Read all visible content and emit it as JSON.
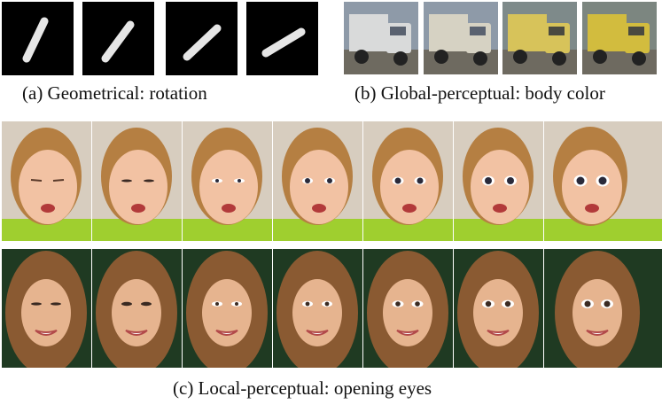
{
  "captions": {
    "a": "(a) Geometrical: rotation",
    "b": "(b) Global-perceptual: body color",
    "c": "(c) Local-perceptual: opening eyes"
  },
  "panels": {
    "rotation": {
      "icon": "digit-one-icon",
      "frames": 4
    },
    "body_color": {
      "icon": "truck-icon",
      "frames": 4,
      "colors": [
        "#d9dada",
        "#d6d2c3",
        "#d7c35a",
        "#d2bc3e"
      ]
    },
    "eyes_child": {
      "icon": "child-face-icon",
      "frames": 7,
      "eye_openness": [
        0.05,
        0.2,
        0.4,
        0.6,
        0.75,
        0.9,
        1.0
      ]
    },
    "eyes_woman": {
      "icon": "woman-face-icon",
      "frames": 7,
      "eye_openness": [
        0.3,
        0.45,
        0.6,
        0.7,
        0.8,
        0.9,
        1.0
      ]
    }
  }
}
